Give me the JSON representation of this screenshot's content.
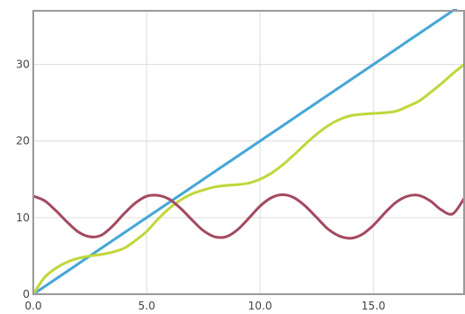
{
  "chart_data": {
    "type": "line",
    "title": "",
    "xlabel": "",
    "ylabel": "",
    "xlim": [
      0,
      19
    ],
    "ylim": [
      0,
      37
    ],
    "grid": true,
    "legend": "none",
    "x_ticks": [
      {
        "value": 0,
        "label": "0.0"
      },
      {
        "value": 5,
        "label": "5.0"
      },
      {
        "value": 10,
        "label": "10.0"
      },
      {
        "value": 15,
        "label": "15.0"
      }
    ],
    "y_ticks": [
      {
        "value": 0,
        "label": "0"
      },
      {
        "value": 10,
        "label": "10"
      },
      {
        "value": 20,
        "label": "20"
      },
      {
        "value": 30,
        "label": "30"
      }
    ],
    "x": [
      0,
      0.5,
      1,
      1.5,
      2,
      2.5,
      3,
      3.5,
      4,
      4.5,
      5,
      5.5,
      6,
      6.5,
      7,
      7.5,
      8,
      8.5,
      9,
      9.5,
      10,
      10.5,
      11,
      11.5,
      12,
      12.5,
      13,
      13.5,
      14,
      14.5,
      15,
      15.5,
      16,
      16.5,
      17,
      17.5,
      18,
      18.5,
      19
    ],
    "series": [
      {
        "color": "#46a6d6",
        "values": [
          0,
          1,
          2,
          3,
          4,
          5,
          6,
          7,
          8,
          9,
          10,
          11,
          12,
          13,
          14,
          15,
          16,
          17,
          18,
          19,
          20,
          21,
          22,
          23,
          24,
          25,
          26,
          27,
          28,
          29,
          30,
          31,
          32,
          33,
          34,
          35,
          36,
          37,
          38
        ]
      },
      {
        "color": "#c2d63c",
        "values": [
          0,
          2.2,
          3.4,
          4.2,
          4.7,
          5.0,
          5.2,
          5.5,
          6.0,
          7.0,
          8.2,
          9.8,
          11.2,
          12.3,
          13.1,
          13.6,
          14.0,
          14.2,
          14.3,
          14.5,
          15.0,
          15.8,
          16.9,
          18.2,
          19.6,
          20.9,
          22.0,
          22.8,
          23.3,
          23.5,
          23.6,
          23.7,
          23.9,
          24.5,
          25.2,
          26.3,
          27.5,
          28.8,
          30.0
        ]
      },
      {
        "color": "#a44a60",
        "values": [
          12.8,
          12.2,
          10.9,
          9.4,
          8.1,
          7.5,
          7.7,
          8.9,
          10.5,
          11.9,
          12.8,
          12.9,
          12.4,
          11.2,
          9.7,
          8.3,
          7.5,
          7.5,
          8.4,
          9.9,
          11.5,
          12.6,
          13.0,
          12.6,
          11.5,
          10.0,
          8.5,
          7.6,
          7.3,
          7.8,
          9.0,
          10.6,
          12.0,
          12.8,
          12.9,
          12.2,
          11.0,
          10.5,
          12.5
        ]
      }
    ]
  }
}
